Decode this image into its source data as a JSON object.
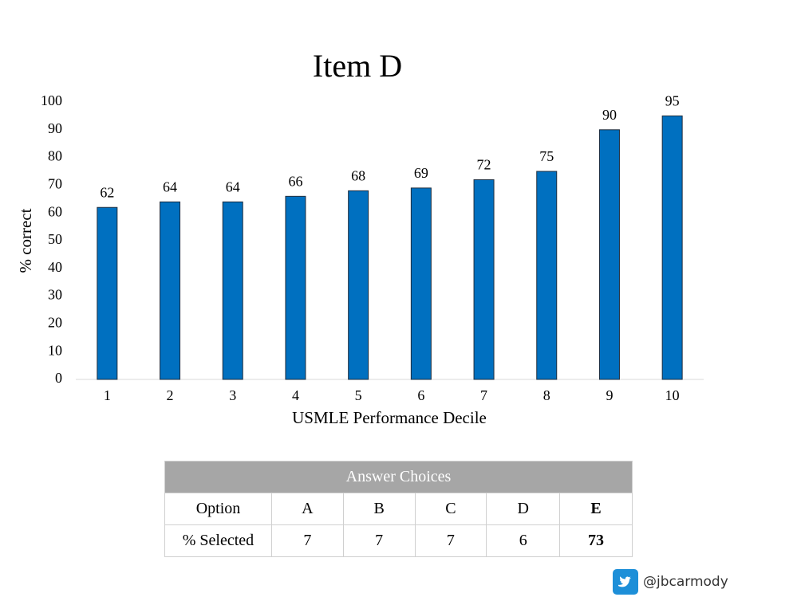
{
  "chart_data": {
    "type": "bar",
    "title": "Item D",
    "x_label": "USMLE Performance Decile",
    "y_label": "% correct",
    "categories": [
      "1",
      "2",
      "3",
      "4",
      "5",
      "6",
      "7",
      "8",
      "9",
      "10"
    ],
    "values": [
      62,
      64,
      64,
      66,
      68,
      69,
      72,
      75,
      90,
      95
    ],
    "color": "#0070c0",
    "ylim": [
      0,
      100
    ],
    "yticks": [
      0,
      10,
      20,
      30,
      40,
      50,
      60,
      70,
      80,
      90,
      100
    ],
    "grid": false
  },
  "table": {
    "title": "Answer Choices",
    "rows": [
      [
        "Option",
        "A",
        "B",
        "C",
        "D",
        "E"
      ],
      [
        "% Selected",
        "7",
        "7",
        "7",
        "6",
        "73"
      ]
    ]
  },
  "footer": {
    "handle": "@jbcarmody"
  }
}
